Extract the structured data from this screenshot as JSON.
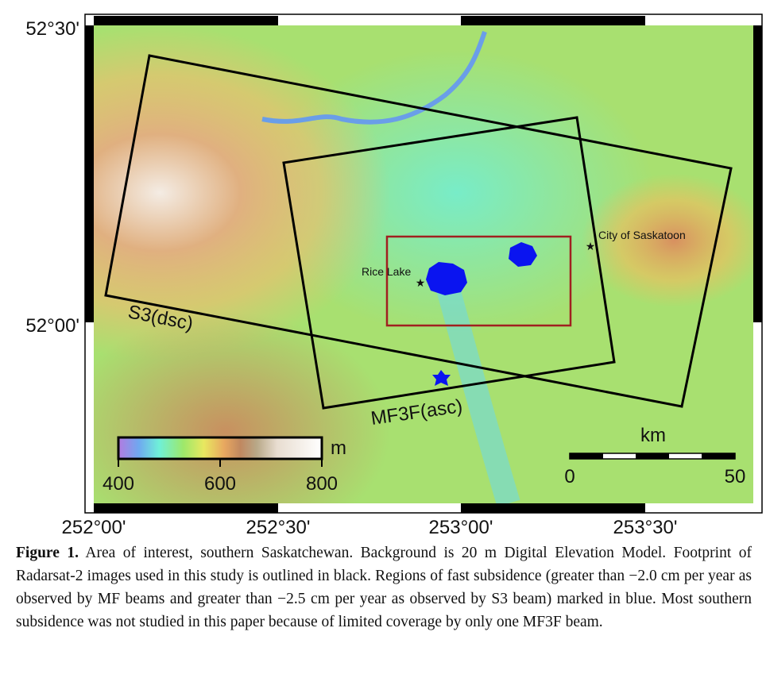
{
  "figure": {
    "map": {
      "lat_labels": [
        "52°30'",
        "52°00'"
      ],
      "lon_labels": [
        "252°00'",
        "252°30'",
        "253°00'",
        "253°30'"
      ],
      "places": [
        "Rice Lake",
        "City of Saskatoon"
      ],
      "footprints": [
        "S3(dsc)",
        "MF3F(asc)"
      ],
      "colorbar": {
        "unit": "m",
        "ticks": [
          "400",
          "600",
          "800"
        ]
      },
      "scale_bar": {
        "unit": "km",
        "ticks": [
          "0",
          "50"
        ]
      }
    },
    "caption": {
      "label": "Figure 1.",
      "text": "Area of interest, southern Saskatchewan. Background is 20 m Digital Elevation Model. Footprint of Radarsat-2 images used in this study is outlined in black. Regions of fast subsidence (greater than −2.0 cm per year as observed by MF beams and greater than −2.5 cm per year as observed by S3 beam) marked in blue. Most southern subsidence was not studied in this paper because of limited coverage by only one MF3F beam."
    }
  }
}
